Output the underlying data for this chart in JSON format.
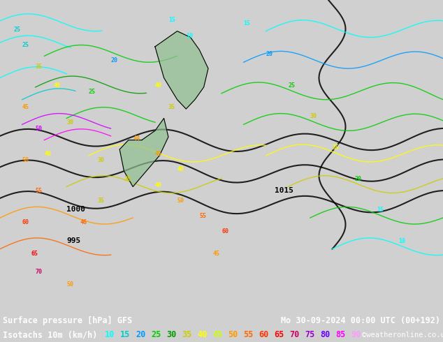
{
  "title_left": "Surface pressure [hPa] GFS",
  "title_right": "Mo 30-09-2024 00:00 UTC (00+192)",
  "legend_label": "Isotachs 10m (km/h)",
  "copyright": "©weatheronline.co.uk",
  "bg_color": "#d0d0d0",
  "map_bg": "#e8e8e8",
  "isotach_values": [
    10,
    15,
    20,
    25,
    30,
    35,
    40,
    45,
    50,
    55,
    60,
    65,
    70,
    75,
    80,
    85,
    90
  ],
  "isotach_colors": [
    "#00ffff",
    "#00ccff",
    "#00aaff",
    "#00ff00",
    "#33cc00",
    "#999900",
    "#ffff00",
    "#ccff00",
    "#99ff00",
    "#ff9900",
    "#ff6600",
    "#ff3300",
    "#ff0066",
    "#cc00ff",
    "#9900ff",
    "#ff00ff",
    "#ff66ff"
  ],
  "figsize": [
    6.34,
    4.9
  ],
  "dpi": 100
}
